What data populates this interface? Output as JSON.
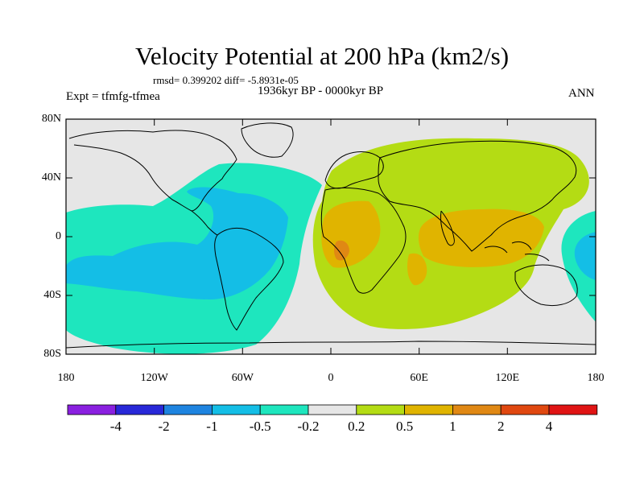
{
  "title": "Velocity Potential at 200 hPa (km2/s)",
  "stats": "rmsd= 0.399202 diff= -5.8931e-05",
  "period": "1936kyr BP - 0000kyr BP",
  "experiment": "Expt = tfmfg-tfmea",
  "season": "ANN",
  "y_axis_labels": [
    "80N",
    "40N",
    "0",
    "40S",
    "80S"
  ],
  "x_axis_labels": [
    "180",
    "120W",
    "60W",
    "0",
    "60E",
    "120E",
    "180"
  ],
  "colorbar": {
    "labels": [
      "-4",
      "-2",
      "-1",
      "-0.5",
      "-0.2",
      "0.2",
      "0.5",
      "1",
      "2",
      "4"
    ],
    "colors": [
      "#8a20e0",
      "#2828d8",
      "#1e84e0",
      "#14bee6",
      "#1ee6be",
      "#e6e6e6",
      "#b4dc14",
      "#e0b400",
      "#e08814",
      "#e04810",
      "#e01414"
    ]
  },
  "map_colors": {
    "background": "#e6e6e6",
    "neg_weak": "#1ee6be",
    "neg_mid": "#14bee6",
    "pos_weak": "#b4dc14",
    "pos_mid": "#e0b400",
    "pos_strong": "#e08814"
  }
}
